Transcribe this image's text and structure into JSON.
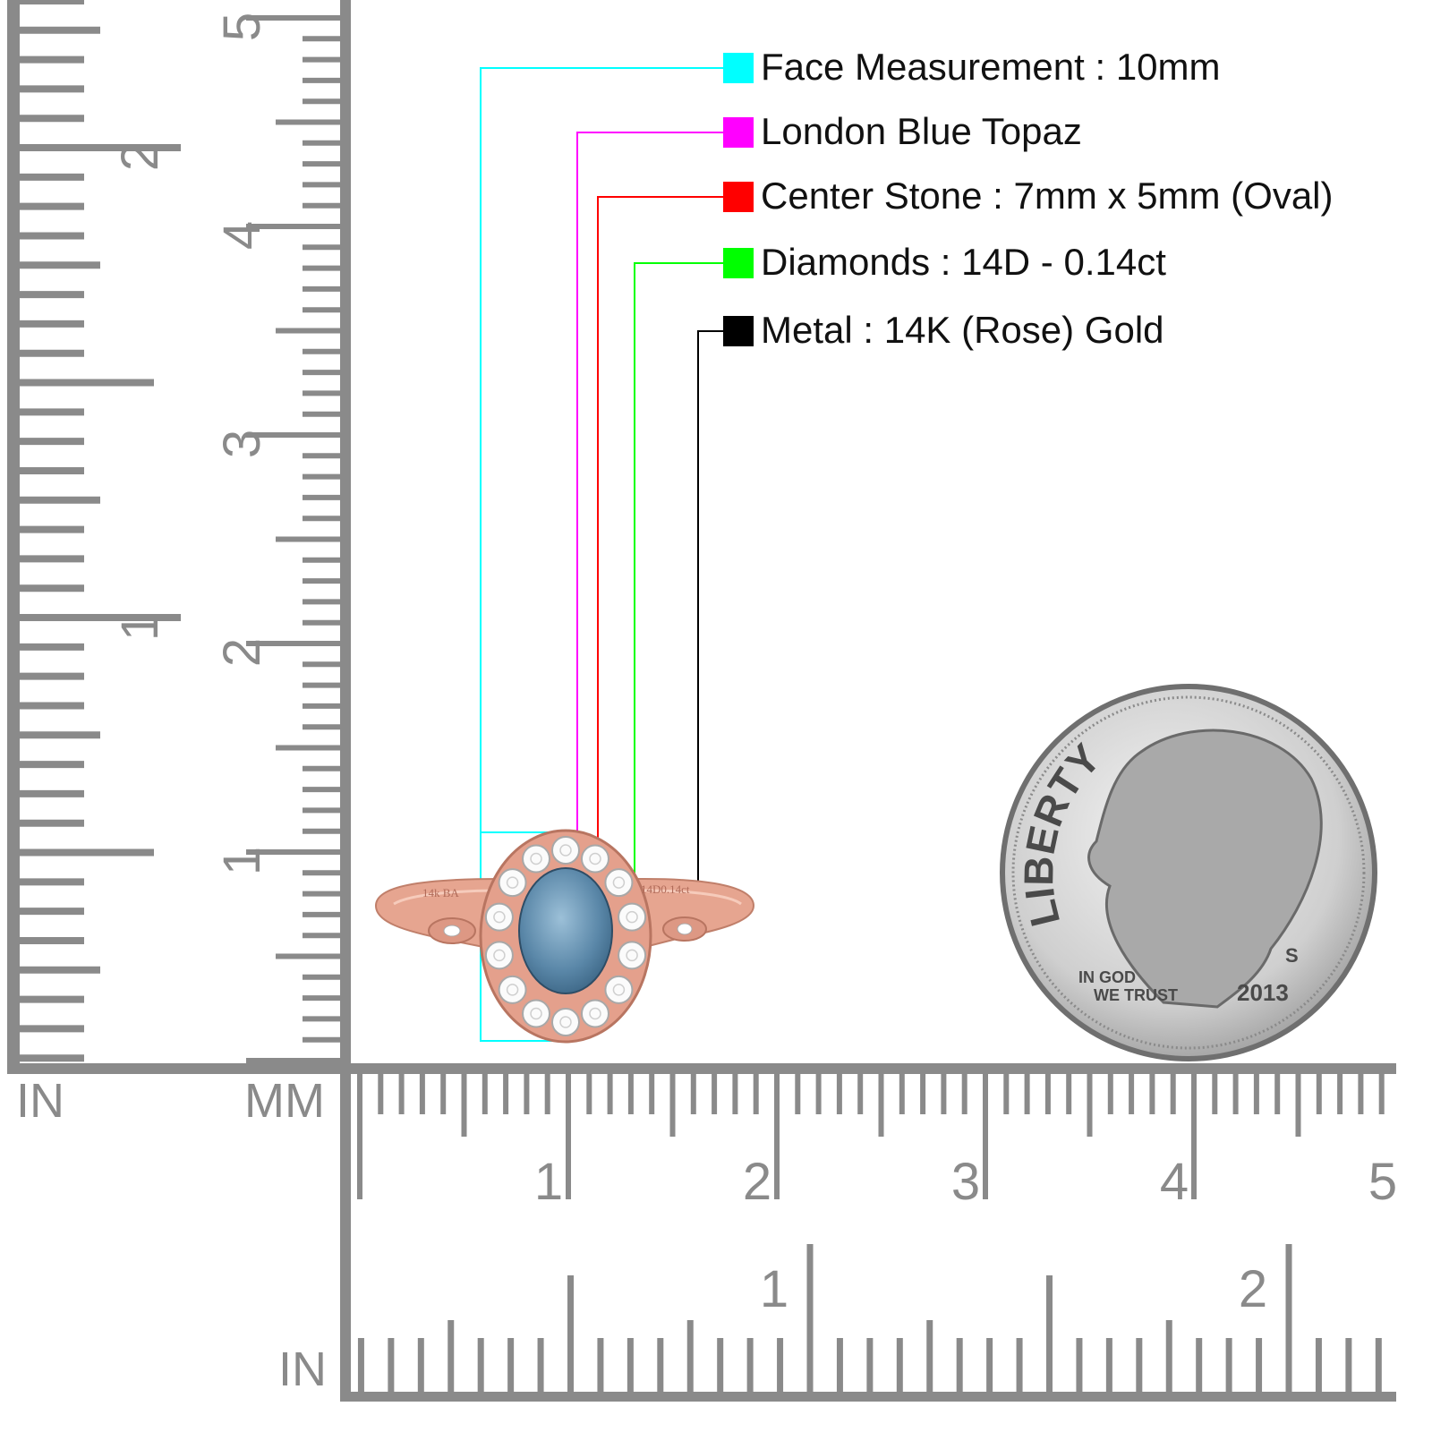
{
  "callouts": [
    {
      "text": "Face Measurement : 10mm",
      "color": "#00ffff"
    },
    {
      "text": "London Blue Topaz",
      "color": "#ff00ff"
    },
    {
      "text": "Center Stone : 7mm x 5mm (Oval)",
      "color": "#ff0000"
    },
    {
      "text": "Diamonds : 14D - 0.14ct",
      "color": "#00ff00"
    },
    {
      "text": "Metal : 14K (Rose) Gold",
      "color": "#000000"
    }
  ],
  "rulers": {
    "left": {
      "unit_inch": "IN",
      "unit_mm": "MM",
      "cm_labels": [
        "1",
        "2",
        "3",
        "4",
        "5"
      ],
      "inch_labels": [
        "1",
        "2"
      ]
    },
    "bottom": {
      "unit_inch": "IN",
      "cm_labels": [
        "1",
        "2",
        "3",
        "4",
        "5"
      ],
      "inch_labels": [
        "1",
        "2"
      ]
    }
  },
  "ring": {
    "engraving_left": "14k BA",
    "engraving_right": "14D0.14ct"
  },
  "coin": {
    "legend": "LIBERTY",
    "motto_1": "IN GOD",
    "motto_2": "WE TRUST",
    "mint_mark": "S",
    "year": "2013"
  }
}
